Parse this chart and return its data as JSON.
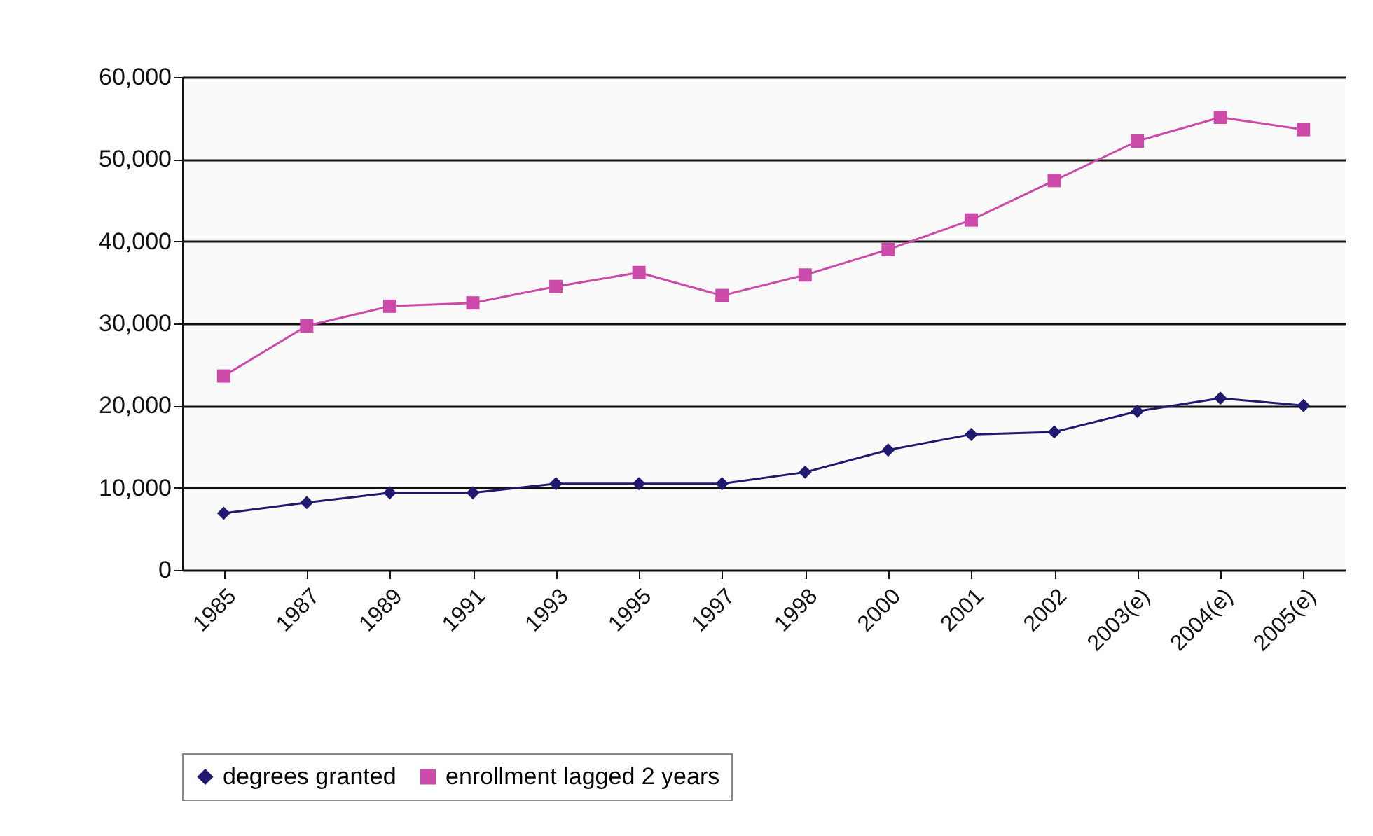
{
  "chart_data": {
    "type": "line",
    "categories": [
      "1985",
      "1987",
      "1989",
      "1991",
      "1993",
      "1995",
      "1997",
      "1998",
      "2000",
      "2001",
      "2002",
      "2003(e)",
      "2004(e)",
      "2005(e)"
    ],
    "series": [
      {
        "name": "degrees granted",
        "color": "#1f1a70",
        "marker": "diamond",
        "values": [
          6900,
          8200,
          9400,
          9400,
          10500,
          10500,
          10500,
          11900,
          14600,
          16500,
          16800,
          19300,
          20900,
          20000
        ]
      },
      {
        "name": "enrollment lagged 2 years",
        "color": "#cc4aaa",
        "marker": "square",
        "values": [
          23600,
          29700,
          32100,
          32500,
          34500,
          36200,
          33400,
          35900,
          39000,
          42600,
          47400,
          52200,
          55100,
          53600
        ]
      }
    ],
    "ylim": [
      0,
      60000
    ],
    "yticks": [
      {
        "value": 0,
        "label": "0"
      },
      {
        "value": 10000,
        "label": "10,000"
      },
      {
        "value": 20000,
        "label": "20,000"
      },
      {
        "value": 30000,
        "label": "30,000"
      },
      {
        "value": 40000,
        "label": "40,000"
      },
      {
        "value": 50000,
        "label": "50,000"
      },
      {
        "value": 60000,
        "label": "60,000"
      }
    ],
    "grid": "y",
    "legend": "bottom",
    "line_style": "solid"
  }
}
